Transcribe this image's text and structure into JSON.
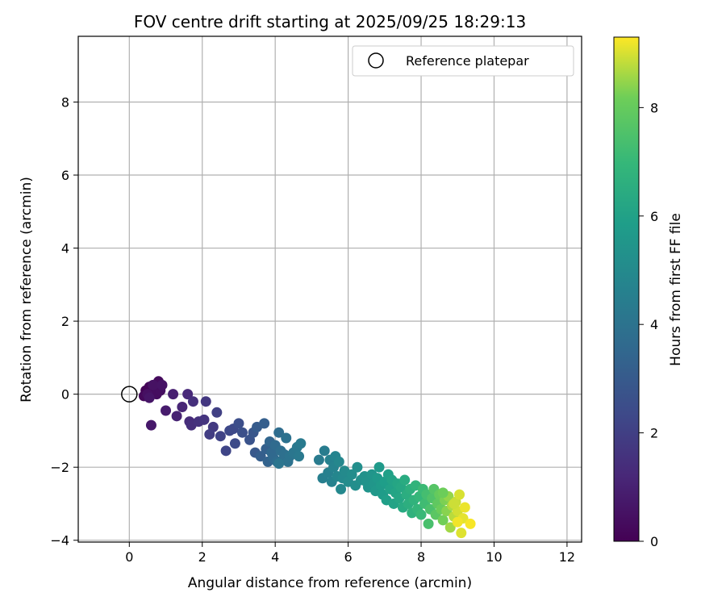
{
  "chart_data": {
    "type": "scatter",
    "title": "FOV centre drift starting at 2025/09/25 18:29:13",
    "xlabel": "Angular distance from reference (arcmin)",
    "ylabel": "Rotation from reference (arcmin)",
    "xlim": [
      -1.4,
      12.4
    ],
    "ylim": [
      -4.05,
      9.8
    ],
    "xticks": [
      0,
      2,
      4,
      6,
      8,
      10,
      12
    ],
    "yticks": [
      -4,
      -2,
      0,
      2,
      4,
      6,
      8
    ],
    "grid": true,
    "legend": {
      "position": "top-right",
      "entries": [
        "Reference platepar"
      ]
    },
    "reference_point": {
      "x": 0,
      "y": 0,
      "label": "Reference platepar"
    },
    "colorbar": {
      "label": "Hours from first FF file",
      "range": [
        0,
        9.3
      ],
      "ticks": [
        0,
        2,
        4,
        6,
        8
      ],
      "colormap": "viridis"
    },
    "series": [
      {
        "name": "FOV centre",
        "points": [
          {
            "x": 0.45,
            "y": 0.1,
            "c": 0.05
          },
          {
            "x": 0.55,
            "y": 0.2,
            "c": 0.1
          },
          {
            "x": 0.6,
            "y": 0.0,
            "c": 0.15
          },
          {
            "x": 0.4,
            "y": -0.05,
            "c": 0.2
          },
          {
            "x": 0.7,
            "y": 0.15,
            "c": 0.25
          },
          {
            "x": 0.8,
            "y": 0.35,
            "c": 0.3
          },
          {
            "x": 0.75,
            "y": 0.0,
            "c": 0.35
          },
          {
            "x": 0.85,
            "y": 0.1,
            "c": 0.4
          },
          {
            "x": 0.5,
            "y": 0.0,
            "c": 0.45
          },
          {
            "x": 0.65,
            "y": 0.25,
            "c": 0.5
          },
          {
            "x": 0.9,
            "y": 0.25,
            "c": 0.55
          },
          {
            "x": 0.55,
            "y": -0.1,
            "c": 0.6
          },
          {
            "x": 0.6,
            "y": -0.85,
            "c": 0.7
          },
          {
            "x": 1.0,
            "y": -0.45,
            "c": 0.8
          },
          {
            "x": 1.2,
            "y": 0.0,
            "c": 0.9
          },
          {
            "x": 1.3,
            "y": -0.6,
            "c": 1.0
          },
          {
            "x": 1.45,
            "y": -0.35,
            "c": 1.1
          },
          {
            "x": 1.6,
            "y": 0.0,
            "c": 1.2
          },
          {
            "x": 1.65,
            "y": -0.75,
            "c": 1.3
          },
          {
            "x": 1.7,
            "y": -0.85,
            "c": 1.4
          },
          {
            "x": 1.75,
            "y": -0.2,
            "c": 1.45
          },
          {
            "x": 1.9,
            "y": -0.75,
            "c": 1.5
          },
          {
            "x": 2.05,
            "y": -0.7,
            "c": 1.6
          },
          {
            "x": 2.1,
            "y": -0.2,
            "c": 1.7
          },
          {
            "x": 2.3,
            "y": -0.9,
            "c": 1.8
          },
          {
            "x": 2.2,
            "y": -1.1,
            "c": 1.9
          },
          {
            "x": 2.4,
            "y": -0.5,
            "c": 2.0
          },
          {
            "x": 2.5,
            "y": -1.15,
            "c": 2.1
          },
          {
            "x": 2.65,
            "y": -1.55,
            "c": 2.2
          },
          {
            "x": 2.75,
            "y": -1.0,
            "c": 2.3
          },
          {
            "x": 2.85,
            "y": -0.95,
            "c": 2.35
          },
          {
            "x": 2.9,
            "y": -1.35,
            "c": 2.4
          },
          {
            "x": 3.0,
            "y": -0.8,
            "c": 2.5
          },
          {
            "x": 3.1,
            "y": -1.05,
            "c": 2.6
          },
          {
            "x": 3.3,
            "y": -1.25,
            "c": 2.7
          },
          {
            "x": 3.4,
            "y": -1.05,
            "c": 2.8
          },
          {
            "x": 3.45,
            "y": -1.6,
            "c": 2.9
          },
          {
            "x": 3.5,
            "y": -0.9,
            "c": 3.0
          },
          {
            "x": 3.6,
            "y": -1.7,
            "c": 3.1
          },
          {
            "x": 3.7,
            "y": -0.8,
            "c": 3.15
          },
          {
            "x": 3.75,
            "y": -1.5,
            "c": 3.2
          },
          {
            "x": 3.8,
            "y": -1.85,
            "c": 3.3
          },
          {
            "x": 3.85,
            "y": -1.3,
            "c": 3.4
          },
          {
            "x": 3.9,
            "y": -1.6,
            "c": 3.5
          },
          {
            "x": 3.95,
            "y": -1.75,
            "c": 3.55
          },
          {
            "x": 4.0,
            "y": -1.4,
            "c": 3.6
          },
          {
            "x": 4.05,
            "y": -1.85,
            "c": 3.65
          },
          {
            "x": 4.1,
            "y": -1.05,
            "c": 3.7
          },
          {
            "x": 4.15,
            "y": -1.55,
            "c": 3.75
          },
          {
            "x": 4.2,
            "y": -1.8,
            "c": 3.8
          },
          {
            "x": 4.25,
            "y": -1.65,
            "c": 3.85
          },
          {
            "x": 4.3,
            "y": -1.2,
            "c": 3.9
          },
          {
            "x": 4.35,
            "y": -1.85,
            "c": 3.95
          },
          {
            "x": 4.4,
            "y": -1.7,
            "c": 4.0
          },
          {
            "x": 4.1,
            "y": -1.9,
            "c": 4.05
          },
          {
            "x": 4.5,
            "y": -1.6,
            "c": 4.1
          },
          {
            "x": 4.6,
            "y": -1.45,
            "c": 4.2
          },
          {
            "x": 4.65,
            "y": -1.7,
            "c": 4.25
          },
          {
            "x": 4.7,
            "y": -1.35,
            "c": 4.3
          },
          {
            "x": 5.2,
            "y": -1.8,
            "c": 4.35
          },
          {
            "x": 5.35,
            "y": -1.55,
            "c": 4.4
          },
          {
            "x": 5.3,
            "y": -2.3,
            "c": 4.5
          },
          {
            "x": 5.45,
            "y": -2.15,
            "c": 4.55
          },
          {
            "x": 5.5,
            "y": -1.8,
            "c": 4.6
          },
          {
            "x": 5.55,
            "y": -2.4,
            "c": 4.65
          },
          {
            "x": 5.6,
            "y": -2.0,
            "c": 4.7
          },
          {
            "x": 5.65,
            "y": -1.7,
            "c": 4.75
          },
          {
            "x": 5.7,
            "y": -2.25,
            "c": 4.8
          },
          {
            "x": 5.75,
            "y": -1.85,
            "c": 4.85
          },
          {
            "x": 5.8,
            "y": -2.6,
            "c": 4.9
          },
          {
            "x": 5.85,
            "y": -2.3,
            "c": 4.95
          },
          {
            "x": 5.9,
            "y": -2.1,
            "c": 5.0
          },
          {
            "x": 6.0,
            "y": -2.4,
            "c": 5.05
          },
          {
            "x": 6.1,
            "y": -2.2,
            "c": 5.1
          },
          {
            "x": 6.2,
            "y": -2.5,
            "c": 5.15
          },
          {
            "x": 6.25,
            "y": -2.0,
            "c": 5.2
          },
          {
            "x": 6.35,
            "y": -2.35,
            "c": 5.25
          },
          {
            "x": 6.45,
            "y": -2.25,
            "c": 5.3
          },
          {
            "x": 6.5,
            "y": -2.4,
            "c": 5.35
          },
          {
            "x": 6.55,
            "y": -2.55,
            "c": 5.4
          },
          {
            "x": 6.65,
            "y": -2.2,
            "c": 5.45
          },
          {
            "x": 6.7,
            "y": -2.45,
            "c": 5.5
          },
          {
            "x": 6.75,
            "y": -2.65,
            "c": 5.55
          },
          {
            "x": 6.8,
            "y": -2.3,
            "c": 5.6
          },
          {
            "x": 6.85,
            "y": -2.0,
            "c": 5.65
          },
          {
            "x": 6.9,
            "y": -2.5,
            "c": 5.7
          },
          {
            "x": 6.95,
            "y": -2.75,
            "c": 5.75
          },
          {
            "x": 7.0,
            "y": -2.4,
            "c": 5.8
          },
          {
            "x": 7.05,
            "y": -2.9,
            "c": 5.85
          },
          {
            "x": 7.1,
            "y": -2.2,
            "c": 5.9
          },
          {
            "x": 7.15,
            "y": -2.6,
            "c": 5.95
          },
          {
            "x": 7.2,
            "y": -2.35,
            "c": 6.0
          },
          {
            "x": 7.25,
            "y": -3.0,
            "c": 6.05
          },
          {
            "x": 7.3,
            "y": -2.7,
            "c": 6.1
          },
          {
            "x": 7.35,
            "y": -2.45,
            "c": 6.15
          },
          {
            "x": 7.4,
            "y": -2.85,
            "c": 6.2
          },
          {
            "x": 7.45,
            "y": -2.55,
            "c": 6.25
          },
          {
            "x": 7.5,
            "y": -3.1,
            "c": 6.35
          },
          {
            "x": 7.55,
            "y": -2.35,
            "c": 6.4
          },
          {
            "x": 7.6,
            "y": -2.75,
            "c": 6.5
          },
          {
            "x": 7.65,
            "y": -3.0,
            "c": 6.55
          },
          {
            "x": 7.7,
            "y": -2.6,
            "c": 6.6
          },
          {
            "x": 7.75,
            "y": -3.25,
            "c": 6.7
          },
          {
            "x": 7.8,
            "y": -2.9,
            "c": 6.75
          },
          {
            "x": 7.85,
            "y": -2.5,
            "c": 6.8
          },
          {
            "x": 7.9,
            "y": -3.15,
            "c": 6.9
          },
          {
            "x": 7.95,
            "y": -2.8,
            "c": 6.95
          },
          {
            "x": 8.0,
            "y": -3.3,
            "c": 7.05
          },
          {
            "x": 8.05,
            "y": -2.6,
            "c": 7.1
          },
          {
            "x": 8.1,
            "y": -3.0,
            "c": 7.2
          },
          {
            "x": 8.15,
            "y": -2.75,
            "c": 7.3
          },
          {
            "x": 8.2,
            "y": -3.55,
            "c": 7.4
          },
          {
            "x": 8.25,
            "y": -3.15,
            "c": 7.45
          },
          {
            "x": 8.3,
            "y": -2.85,
            "c": 7.55
          },
          {
            "x": 8.35,
            "y": -2.6,
            "c": 7.65
          },
          {
            "x": 8.4,
            "y": -3.3,
            "c": 7.75
          },
          {
            "x": 8.45,
            "y": -3.0,
            "c": 7.85
          },
          {
            "x": 8.5,
            "y": -2.75,
            "c": 7.95
          },
          {
            "x": 8.55,
            "y": -3.15,
            "c": 8.05
          },
          {
            "x": 8.6,
            "y": -3.45,
            "c": 8.15
          },
          {
            "x": 8.65,
            "y": -2.9,
            "c": 8.25
          },
          {
            "x": 8.7,
            "y": -3.2,
            "c": 8.35
          },
          {
            "x": 8.75,
            "y": -2.8,
            "c": 8.45
          },
          {
            "x": 8.8,
            "y": -3.65,
            "c": 8.55
          },
          {
            "x": 8.85,
            "y": -3.05,
            "c": 8.65
          },
          {
            "x": 8.9,
            "y": -3.35,
            "c": 8.75
          },
          {
            "x": 8.95,
            "y": -2.95,
            "c": 8.85
          },
          {
            "x": 9.0,
            "y": -3.2,
            "c": 8.95
          },
          {
            "x": 9.05,
            "y": -2.75,
            "c": 9.0
          },
          {
            "x": 9.1,
            "y": -3.8,
            "c": 9.05
          },
          {
            "x": 9.15,
            "y": -3.4,
            "c": 9.1
          },
          {
            "x": 9.2,
            "y": -3.1,
            "c": 9.15
          },
          {
            "x": 9.35,
            "y": -3.55,
            "c": 9.25
          },
          {
            "x": 8.6,
            "y": -2.7,
            "c": 8.1
          },
          {
            "x": 8.9,
            "y": -3.0,
            "c": 8.9
          },
          {
            "x": 9.0,
            "y": -3.5,
            "c": 9.2
          }
        ]
      }
    ]
  }
}
